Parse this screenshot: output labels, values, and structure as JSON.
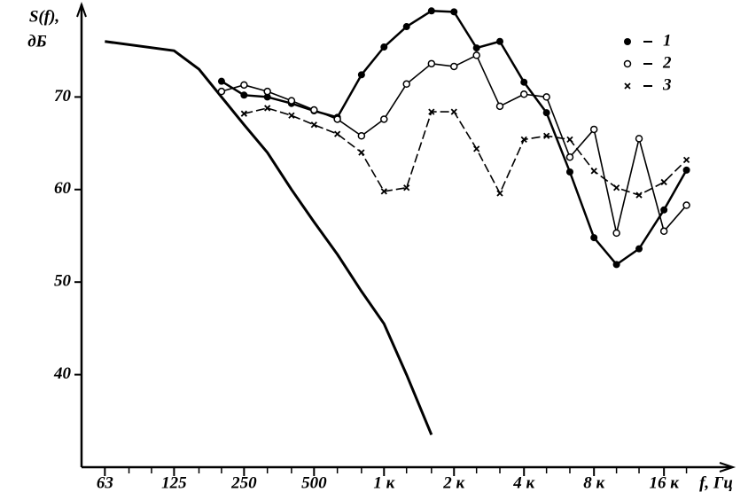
{
  "chart_data": {
    "type": "line",
    "y_label_line1": "S(f),",
    "y_label_line2": "дБ",
    "x_label": "f, Гц",
    "xscale": "log",
    "xlim": [
      50,
      25000
    ],
    "ylim": [
      30,
      80
    ],
    "xticks": [
      63,
      125,
      250,
      500,
      {
        "value": 1000,
        "label": "1 к"
      },
      {
        "value": 2000,
        "label": "2 к"
      },
      {
        "value": 4000,
        "label": "4 к"
      },
      {
        "value": 8000,
        "label": "8 к"
      },
      {
        "value": 16000,
        "label": "16 к"
      }
    ],
    "xticks_minor": [
      80,
      100,
      160,
      200,
      315,
      400,
      630,
      800,
      1250,
      1600,
      2500,
      3150,
      5000,
      6300,
      10000,
      12500,
      20000
    ],
    "yticks": [
      40,
      50,
      60,
      70
    ],
    "legend": "top-right",
    "series": [
      {
        "color": "#000000",
        "width": 3,
        "marker": "none",
        "dash": "none",
        "x": [
          63,
          125,
          160,
          200,
          250,
          315,
          400,
          500,
          630,
          800,
          1000,
          1250,
          1600
        ],
        "values": [
          76,
          75,
          73,
          70,
          67,
          64,
          60,
          56.5,
          53,
          49,
          45.5,
          40,
          33.5
        ]
      },
      {
        "name": "1",
        "color": "#000000",
        "width": 2.5,
        "marker": "filled",
        "dash": "none",
        "x": [
          200,
          250,
          315,
          400,
          500,
          630,
          800,
          1000,
          1250,
          1600,
          2000,
          2500,
          3150,
          4000,
          5000,
          6300,
          8000,
          10000,
          12500,
          16000,
          20000
        ],
        "values": [
          71.7,
          70.2,
          70,
          69.3,
          68.5,
          67.8,
          72.4,
          75.4,
          77.6,
          79.3,
          79.2,
          75.3,
          76,
          71.6,
          68.3,
          61.9,
          54.8,
          51.9,
          53.6,
          57.8,
          62.1
        ]
      },
      {
        "name": "2",
        "color": "#000000",
        "width": 1.6,
        "marker": "open",
        "dash": "none",
        "x": [
          200,
          250,
          315,
          400,
          500,
          630,
          800,
          1000,
          1250,
          1600,
          2000,
          2500,
          3150,
          4000,
          5000,
          6300,
          8000,
          10000,
          12500,
          16000,
          20000
        ],
        "values": [
          70.6,
          71.3,
          70.6,
          69.6,
          68.6,
          67.6,
          65.8,
          67.6,
          71.4,
          73.6,
          73.3,
          74.5,
          69,
          70.3,
          70,
          63.5,
          66.5,
          55.3,
          65.5,
          55.5,
          58.3
        ]
      },
      {
        "name": "3",
        "color": "#000000",
        "width": 1.6,
        "marker": "cross",
        "dash": "10 4",
        "x": [
          250,
          315,
          400,
          500,
          630,
          800,
          1000,
          1250,
          1600,
          2000,
          2500,
          3150,
          4000,
          5000,
          6300,
          8000,
          10000,
          12500,
          16000,
          20000
        ],
        "values": [
          68.2,
          68.8,
          68,
          67,
          66,
          64,
          59.8,
          60.2,
          68.4,
          68.4,
          64.4,
          59.6,
          65.4,
          65.8,
          65.4,
          62,
          60.2,
          59.4,
          60.8,
          63.2
        ]
      }
    ]
  }
}
